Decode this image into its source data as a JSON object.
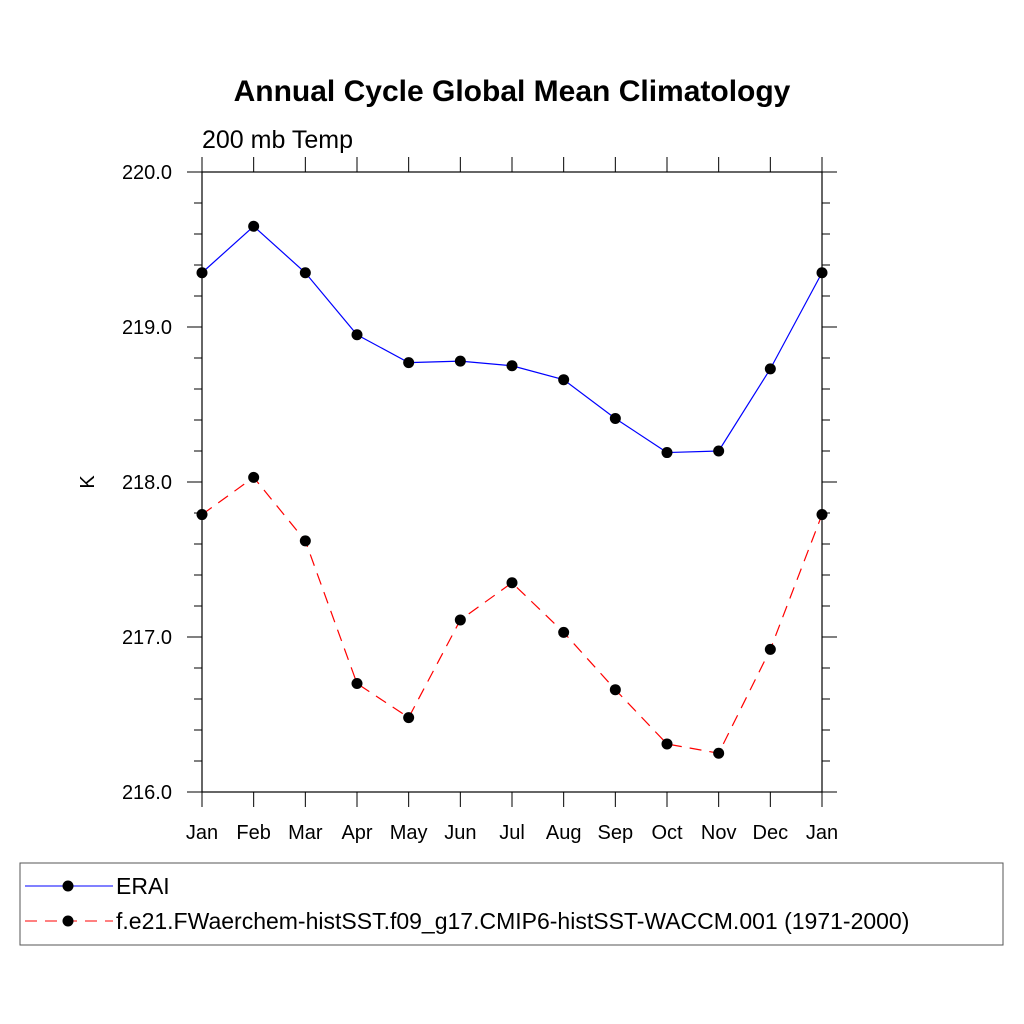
{
  "chart_data": {
    "type": "line",
    "title": "Annual Cycle Global Mean Climatology",
    "subtitle": "200 mb Temp",
    "xlabel": "",
    "ylabel": "K",
    "categories": [
      "Jan",
      "Feb",
      "Mar",
      "Apr",
      "May",
      "Jun",
      "Jul",
      "Aug",
      "Sep",
      "Oct",
      "Nov",
      "Dec",
      "Jan"
    ],
    "ylim": [
      216.0,
      220.0
    ],
    "yticks": [
      "216.0",
      "217.0",
      "218.0",
      "219.0",
      "220.0"
    ],
    "grid": false,
    "legend_position": "bottom",
    "series": [
      {
        "name": "ERAI",
        "color": "#0000ff",
        "line_style": "solid",
        "marker": "filled-circle",
        "values": [
          219.35,
          219.65,
          219.35,
          218.95,
          218.77,
          218.78,
          218.75,
          218.66,
          218.41,
          218.19,
          218.2,
          218.73,
          219.35
        ]
      },
      {
        "name": "f.e21.FWaerchem-histSST.f09_g17.CMIP6-histSST-WACCM.001 (1971-2000)",
        "color": "#ff0000",
        "line_style": "dashed",
        "marker": "filled-circle",
        "values": [
          217.79,
          218.03,
          217.62,
          216.7,
          216.48,
          217.11,
          217.35,
          217.03,
          216.66,
          216.31,
          216.25,
          216.92,
          217.79
        ]
      }
    ]
  }
}
